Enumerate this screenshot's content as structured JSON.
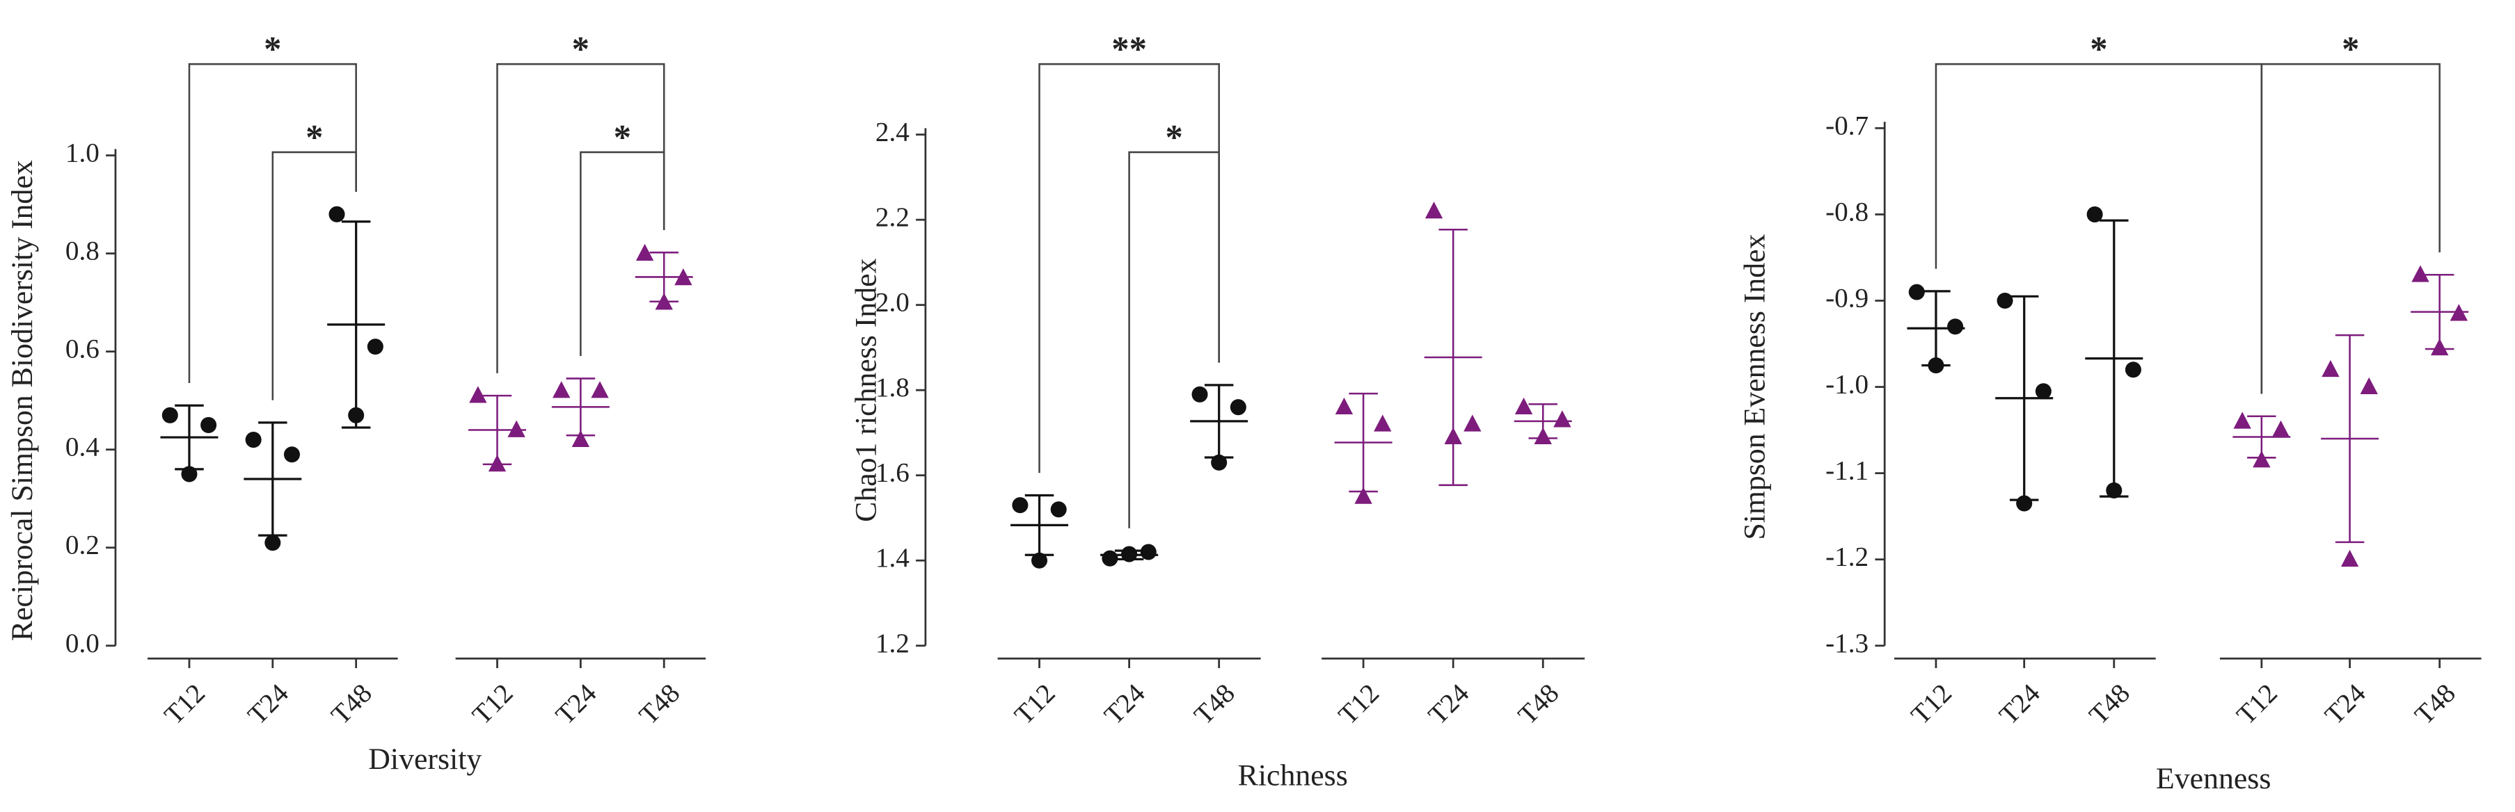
{
  "chart_data": [
    {
      "type": "scatter",
      "x_label": "Diversity",
      "y_label": "Reciprocal Simpson Biodiversity Index",
      "ylim": [
        0,
        1.0
      ],
      "yticks": [
        {
          "value": 0,
          "label": "0.0"
        },
        0.2,
        0.4,
        0.6,
        0.8,
        {
          "value": 1.0,
          "label": "1.0"
        }
      ],
      "groups": [
        {
          "color": "#111111",
          "marker": "circle",
          "categories": [
            "T12",
            "T24",
            "T48"
          ],
          "points": [
            [
              0.47,
              0.45,
              0.35
            ],
            [
              0.42,
              0.39,
              0.21
            ],
            [
              0.88,
              0.61,
              0.47
            ]
          ],
          "means": [
            0.425,
            0.34,
            0.655
          ],
          "sds": [
            0.065,
            0.115,
            0.21
          ]
        },
        {
          "color": "#7d1c7d",
          "marker": "triangle",
          "categories": [
            "T12",
            "T24",
            "T48"
          ],
          "points": [
            [
              0.51,
              0.44,
              0.37
            ],
            [
              0.52,
              0.52,
              0.42
            ],
            [
              0.8,
              0.75,
              0.7
            ]
          ],
          "means": [
            0.44,
            0.487,
            0.752
          ],
          "sds": [
            0.07,
            0.058,
            0.05
          ]
        }
      ],
      "brackets": [
        {
          "from": 0,
          "to": 2,
          "label": "*"
        },
        {
          "from": 1,
          "to": 2,
          "label": "*"
        },
        {
          "from": 3,
          "to": 5,
          "label": "*"
        },
        {
          "from": 4,
          "to": 5,
          "label": "*"
        }
      ]
    },
    {
      "type": "scatter",
      "x_label": "Richness",
      "y_label": "Chao1 richness Index",
      "ylim": [
        1.2,
        2.4
      ],
      "yticks": [
        1.2,
        1.4,
        1.6,
        1.8,
        {
          "value": 2.0,
          "label": "2.0"
        },
        2.2,
        2.4
      ],
      "groups": [
        {
          "color": "#111111",
          "marker": "circle",
          "categories": [
            "T12",
            "T24",
            "T48"
          ],
          "points": [
            [
              1.53,
              1.52,
              1.4
            ],
            [
              1.405,
              1.42,
              1.415
            ],
            [
              1.79,
              1.76,
              1.63
            ]
          ],
          "means": [
            1.483,
            1.413,
            1.727
          ],
          "sds": [
            0.07,
            0.01,
            0.085
          ]
        },
        {
          "color": "#7d1c7d",
          "marker": "triangle",
          "categories": [
            "T12",
            "T24",
            "T48"
          ],
          "points": [
            [
              1.76,
              1.72,
              1.55
            ],
            [
              2.22,
              1.72,
              1.69
            ],
            [
              1.76,
              1.73,
              1.69
            ]
          ],
          "means": [
            1.677,
            1.877,
            1.727
          ],
          "sds": [
            0.115,
            0.3,
            0.04
          ]
        }
      ],
      "brackets": [
        {
          "from": 0,
          "to": 2,
          "label": "**"
        },
        {
          "from": 1,
          "to": 2,
          "label": "*"
        }
      ]
    },
    {
      "type": "scatter",
      "x_label": "Evenness",
      "y_label": "Simpson Evenness Index",
      "ylim": [
        -1.3,
        -0.7
      ],
      "yticks": [
        -1.3,
        -1.2,
        -1.1,
        {
          "value": -1.0,
          "label": "-1.0"
        },
        -0.9,
        -0.8,
        -0.7
      ],
      "groups": [
        {
          "color": "#111111",
          "marker": "circle",
          "categories": [
            "T12",
            "T24",
            "T48"
          ],
          "points": [
            [
              -0.89,
              -0.93,
              -0.975
            ],
            [
              -0.9,
              -1.005,
              -1.135
            ],
            [
              -0.8,
              -0.98,
              -1.12
            ]
          ],
          "means": [
            -0.932,
            -1.013,
            -0.967
          ],
          "sds": [
            0.043,
            0.118,
            0.16
          ]
        },
        {
          "color": "#7d1c7d",
          "marker": "triangle",
          "categories": [
            "T12",
            "T24",
            "T48"
          ],
          "points": [
            [
              -1.04,
              -1.05,
              -1.085
            ],
            [
              -0.98,
              -1.0,
              -1.2
            ],
            [
              -0.87,
              -0.915,
              -0.955
            ]
          ],
          "means": [
            -1.058,
            -1.06,
            -0.913
          ],
          "sds": [
            0.024,
            0.12,
            0.043
          ]
        }
      ],
      "brackets": [
        {
          "from": 0,
          "to": 3,
          "label": "*"
        },
        {
          "from": 3,
          "to": 5,
          "label": "*"
        }
      ]
    }
  ]
}
